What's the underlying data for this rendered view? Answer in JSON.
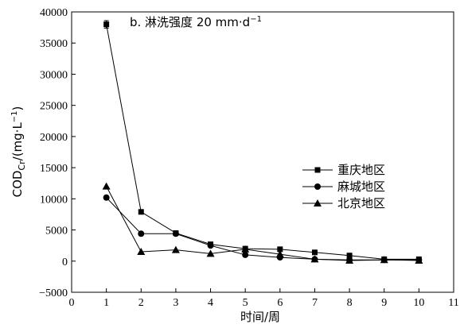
{
  "chart_data": {
    "type": "line",
    "annotation": "b. 淋洗强度 20 mm·d",
    "annotation_sup": "−1",
    "xlabel": "时间/周",
    "ylabel_main": "COD",
    "ylabel_sub": "Cr",
    "ylabel_tail": "/(mg·L",
    "ylabel_sup": "−1",
    "ylabel_close": ")",
    "xlim": [
      0,
      11
    ],
    "ylim": [
      -5000,
      40000
    ],
    "xticks": [
      0,
      1,
      2,
      3,
      4,
      5,
      6,
      7,
      8,
      9,
      10,
      11
    ],
    "yticks": [
      -5000,
      0,
      5000,
      10000,
      15000,
      20000,
      25000,
      30000,
      35000,
      40000
    ],
    "ytick_labels": [
      "−5000",
      "0",
      "5000",
      "10000",
      "15000",
      "20000",
      "25000",
      "30000",
      "35000",
      "40000"
    ],
    "x": [
      1,
      2,
      3,
      4,
      5,
      6,
      7,
      8,
      9,
      10
    ],
    "legend_position": "right-middle",
    "grid": false,
    "series": [
      {
        "name": "重庆地区",
        "marker": "square",
        "values": [
          38000,
          7900,
          4500,
          2700,
          2000,
          1900,
          1400,
          900,
          300,
          300
        ],
        "error_first": 600
      },
      {
        "name": "麻城地区",
        "marker": "circle",
        "values": [
          10200,
          4400,
          4400,
          2500,
          1000,
          600,
          300,
          200,
          200,
          200
        ]
      },
      {
        "name": "北京地区",
        "marker": "triangle",
        "values": [
          12000,
          1500,
          1800,
          1200,
          1900,
          1100,
          300,
          100,
          200,
          100
        ]
      }
    ]
  }
}
